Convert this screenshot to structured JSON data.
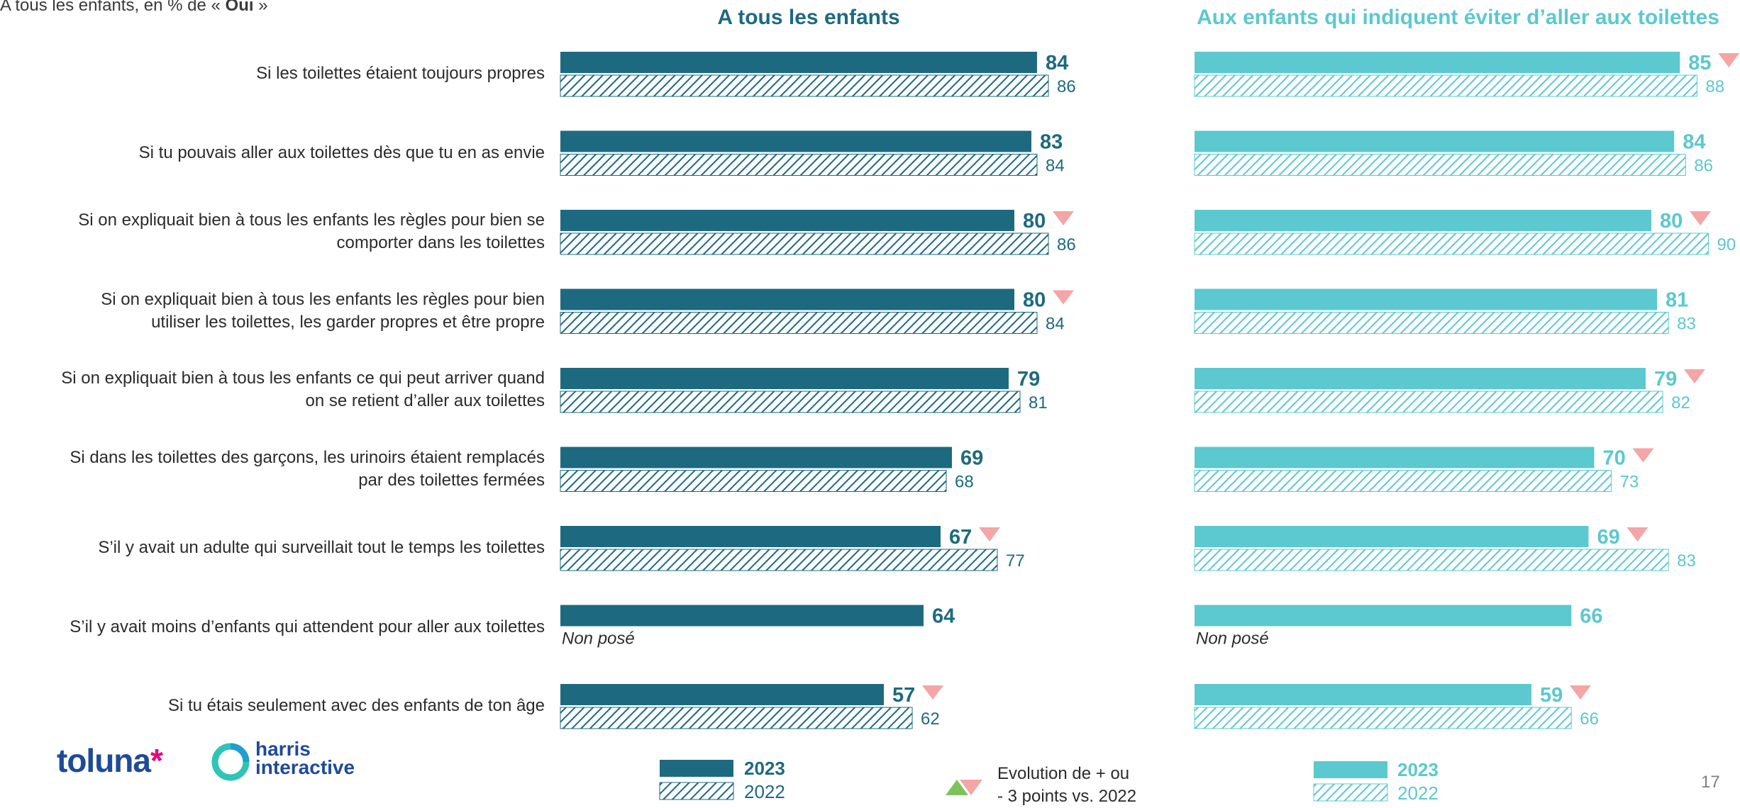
{
  "subtitle_prefix": "A tous les enfants, en % de « ",
  "subtitle_bold": "Oui",
  "subtitle_suffix": " »",
  "page_number": "17",
  "evolution_legend": [
    "Evolution de + ou",
    "- 3 points vs. 2022"
  ],
  "non_pose_label": "Non posé",
  "logos": {
    "toluna": "toluna",
    "toluna_star": "*",
    "harris_1": "harris",
    "harris_2": "interactive"
  },
  "colors": {
    "dark": "#1d6a80",
    "light": "#5cc8cf",
    "down_arrow": "#f4a5a5",
    "up_arrow": "#7cc35c"
  },
  "chart_data": [
    {
      "type": "bar",
      "orientation": "horizontal",
      "title": "A tous les enfants",
      "categories": [
        "Si les toilettes étaient toujours propres",
        "Si tu pouvais aller aux toilettes dès que tu en as envie",
        "Si on expliquait bien à tous les enfants les règles pour bien se comporter dans les toilettes",
        "Si on expliquait bien à tous les enfants les règles pour bien utiliser les toilettes, les garder propres et être propre",
        "Si on expliquait bien à tous les enfants ce qui peut arriver quand on se retient d’aller aux toilettes",
        "Si dans les toilettes des garçons, les urinoirs étaient remplacés par des toilettes fermées",
        "S’il y avait un adulte qui surveillait tout le temps les toilettes",
        "S’il y avait moins d’enfants qui attendent pour aller aux toilettes",
        "Si tu étais seulement avec des enfants de ton âge"
      ],
      "category_lines": [
        [
          "Si les toilettes étaient toujours propres"
        ],
        [
          "Si tu pouvais aller aux toilettes dès que tu en as envie"
        ],
        [
          "Si on expliquait bien à tous les enfants les règles pour bien se",
          "comporter dans les toilettes"
        ],
        [
          "Si on expliquait bien à tous les enfants les règles pour bien",
          "utiliser les toilettes, les garder propres et être propre"
        ],
        [
          "Si on expliquait bien à tous les enfants ce qui peut arriver quand",
          "on se retient d’aller aux toilettes"
        ],
        [
          "Si dans les toilettes des garçons, les urinoirs étaient remplacés",
          "par des toilettes fermées"
        ],
        [
          "S’il y avait un adulte qui surveillait tout le temps les toilettes"
        ],
        [
          "S’il y avait moins d’enfants qui attendent pour aller aux toilettes"
        ],
        [
          "Si tu étais seulement avec des enfants de ton âge"
        ]
      ],
      "series": [
        {
          "name": "2023",
          "values": [
            84,
            83,
            80,
            80,
            79,
            69,
            67,
            64,
            57
          ]
        },
        {
          "name": "2022",
          "values": [
            86,
            84,
            86,
            84,
            81,
            68,
            77,
            null,
            62
          ]
        }
      ],
      "evolution_down": [
        false,
        false,
        true,
        true,
        false,
        false,
        true,
        false,
        true
      ],
      "xlim": [
        0,
        100
      ]
    },
    {
      "type": "bar",
      "orientation": "horizontal",
      "title": "Aux enfants qui indiquent éviter d’aller aux toilettes",
      "series": [
        {
          "name": "2023",
          "values": [
            85,
            84,
            80,
            81,
            79,
            70,
            69,
            66,
            59
          ]
        },
        {
          "name": "2022",
          "values": [
            88,
            86,
            90,
            83,
            82,
            73,
            83,
            null,
            66
          ]
        }
      ],
      "evolution_down": [
        true,
        false,
        true,
        false,
        true,
        true,
        true,
        false,
        true
      ],
      "xlim": [
        0,
        100
      ]
    }
  ]
}
